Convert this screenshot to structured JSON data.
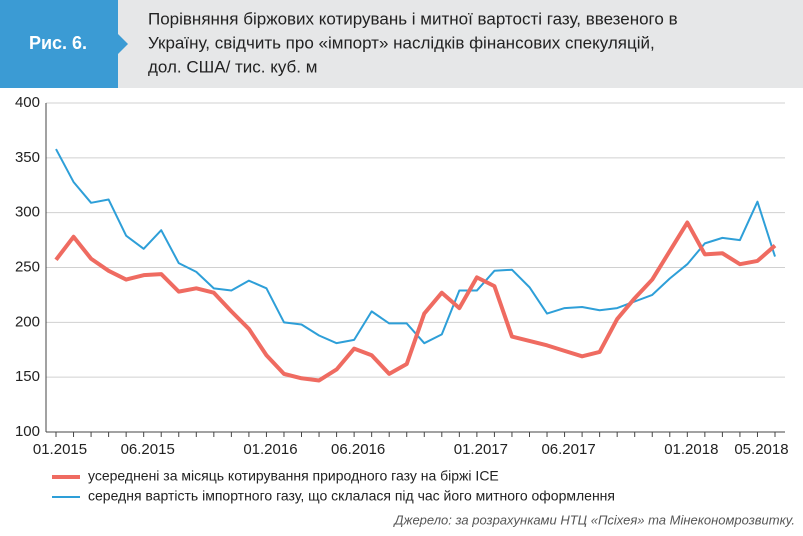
{
  "chart_data": {
    "type": "line",
    "badge": "Рис. 6.",
    "title_lines": [
      "Порівняння біржових котирувань і митної вартості газу, ввезеного в",
      "Україну,  свідчить про «імпорт» наслідків фінансових спекуляцій,",
      "дол. США/ тис. куб. м"
    ],
    "categories": [
      "01.2015",
      null,
      null,
      null,
      null,
      "06.2015",
      null,
      null,
      null,
      null,
      null,
      null,
      "01.2016",
      null,
      null,
      null,
      null,
      "06.2016",
      null,
      null,
      null,
      null,
      null,
      null,
      "01.2017",
      null,
      null,
      null,
      null,
      "06.2017",
      null,
      null,
      null,
      null,
      null,
      null,
      "01.2018",
      null,
      null,
      null,
      "05.2018",
      null
    ],
    "series": [
      {
        "name": "усереднені за місяць котирування природного газу на біржі ICE",
        "color": "#ef6b61",
        "values": [
          257,
          278,
          258,
          247,
          239,
          243,
          244,
          228,
          231,
          227,
          210,
          194,
          170,
          153,
          149,
          147,
          157,
          176,
          170,
          153,
          162,
          208,
          227,
          213,
          241,
          233,
          187,
          183,
          179,
          174,
          169,
          173,
          203,
          222,
          239,
          265,
          291,
          262,
          263,
          253,
          256,
          270
        ]
      },
      {
        "name": "середня вартість імпортного газу, що склалася під час його митного оформлення",
        "color": "#2e9fd8",
        "values": [
          358,
          328,
          309,
          312,
          279,
          267,
          284,
          254,
          246,
          231,
          229,
          238,
          231,
          200,
          198,
          188,
          181,
          184,
          210,
          199,
          199,
          181,
          189,
          229,
          229,
          247,
          248,
          232,
          208,
          213,
          214,
          211,
          213,
          219,
          225,
          240,
          253,
          272,
          277,
          275,
          310,
          260
        ]
      }
    ],
    "ylim": [
      100,
      400
    ],
    "yticks": [
      100,
      150,
      200,
      250,
      300,
      350,
      400
    ],
    "grid": true,
    "source": "Джерело: за розрахунками НТЦ «Псіхея» та Мінекономрозвитку."
  }
}
